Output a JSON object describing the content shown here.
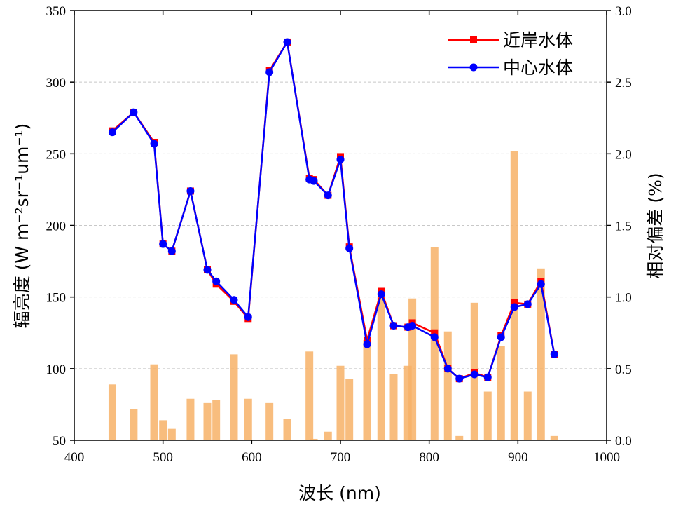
{
  "chart_data": {
    "type": "line",
    "xlabel": "波长 (nm)",
    "ylabel": "辐亮度 (W m⁻²sr⁻¹um⁻¹)",
    "y2label": "相对偏差 (%)",
    "xlim": [
      400,
      1000
    ],
    "ylim": [
      50,
      350
    ],
    "y2lim": [
      0,
      3
    ],
    "xticks": [
      400,
      500,
      600,
      700,
      800,
      900,
      1000
    ],
    "yticks": [
      50,
      100,
      150,
      200,
      250,
      300,
      350
    ],
    "y2ticks": [
      "0.0",
      "0.5",
      "1.0",
      "1.5",
      "2.0",
      "2.5",
      "3.0"
    ],
    "grid": "horizontal dashed",
    "legend_position": "top-right",
    "x": [
      443,
      467,
      490,
      500,
      510,
      531,
      550,
      560,
      580,
      596,
      620,
      640,
      665,
      670,
      686,
      700,
      710,
      730,
      746,
      760,
      776,
      781,
      806,
      821,
      834,
      851,
      866,
      881,
      896,
      911,
      926,
      941
    ],
    "series": [
      {
        "name": "近岸水体",
        "color": "#ff0000",
        "marker": "square",
        "values": [
          266,
          279,
          258,
          187,
          182,
          224,
          169,
          159,
          147,
          135,
          308,
          328,
          233,
          232,
          221,
          248,
          185,
          120,
          154,
          130,
          129,
          132,
          125,
          100,
          93,
          97,
          94,
          123,
          146,
          145,
          161,
          110
        ]
      },
      {
        "name": "中心水体",
        "color": "#0000ff",
        "marker": "circle",
        "values": [
          265,
          279,
          257,
          187,
          182,
          224,
          169,
          161,
          148,
          136,
          307,
          328,
          232,
          231,
          221,
          246,
          184,
          117,
          152,
          130,
          129,
          130,
          122,
          100,
          93,
          96,
          94,
          122,
          143,
          145,
          159,
          110
        ]
      }
    ],
    "bar_series": {
      "name": "相对偏差",
      "axis": "right",
      "color": "#f7b267",
      "x": [
        443,
        467,
        490,
        500,
        510,
        531,
        550,
        560,
        580,
        596,
        620,
        640,
        665,
        670,
        686,
        700,
        710,
        730,
        746,
        760,
        776,
        781,
        806,
        821,
        834,
        851,
        866,
        881,
        896,
        911,
        926,
        941
      ],
      "values": [
        0.39,
        0.22,
        0.53,
        0.14,
        0.08,
        0.29,
        0.26,
        0.28,
        0.6,
        0.29,
        0.26,
        0.15,
        0.62,
        0.01,
        0.06,
        0.52,
        0.43,
        0.7,
        1.0,
        0.46,
        0.52,
        0.99,
        1.35,
        0.76,
        0.03,
        0.96,
        0.34,
        0.66,
        2.02,
        0.34,
        1.2,
        0.03
      ]
    }
  }
}
